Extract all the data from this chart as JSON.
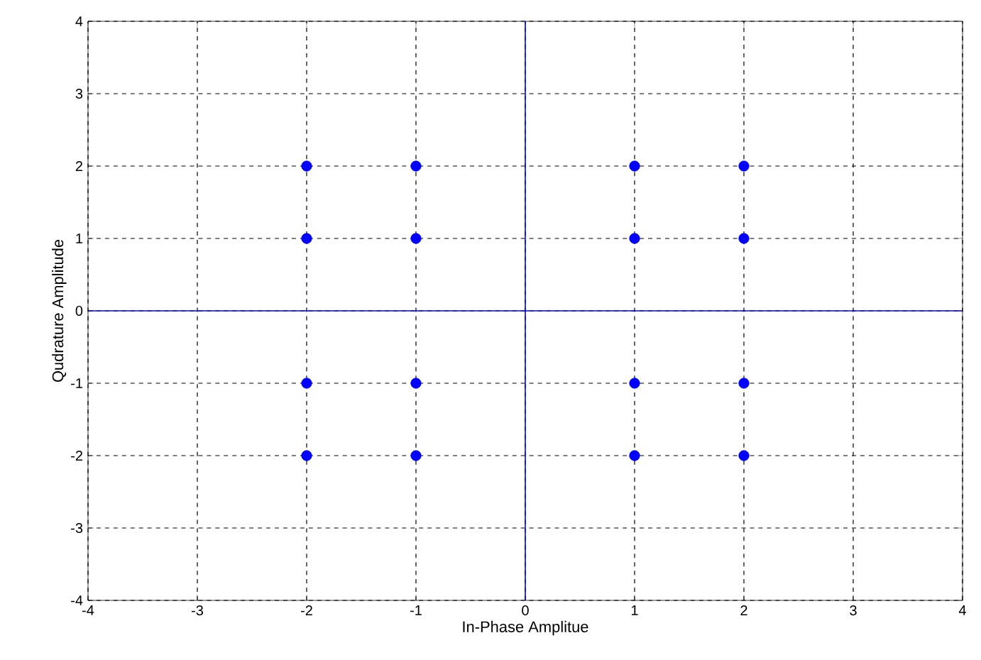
{
  "chart_data": {
    "type": "scatter",
    "xlabel": "In-Phase Amplitue",
    "ylabel": "Qudrature Amplitude",
    "series": [
      {
        "color": "#0000ff",
        "marker": "circle",
        "x": [
          -2,
          -2,
          -2,
          -2,
          -1,
          -1,
          -1,
          -1,
          1,
          1,
          1,
          1,
          2,
          2,
          2,
          2
        ],
        "values": [
          2,
          1,
          -1,
          -2,
          2,
          1,
          -1,
          -2,
          2,
          1,
          -1,
          -2,
          2,
          1,
          -1,
          -2
        ]
      },
      {
        "type": "line",
        "color": "#0000ff",
        "marker": "none",
        "x": [
          0,
          0
        ],
        "values": [
          -4,
          4
        ]
      },
      {
        "type": "line",
        "color": "#0000ff",
        "marker": "none",
        "x": [
          -4,
          4
        ],
        "values": [
          0,
          0
        ]
      }
    ],
    "xlim": [
      -4,
      4
    ],
    "ylim": [
      -4,
      4
    ],
    "xticks": [
      -4,
      -3,
      -2,
      -1,
      0,
      1,
      2,
      3,
      4
    ],
    "yticks": [
      -4,
      -3,
      -2,
      -1,
      0,
      1,
      2,
      3,
      4
    ],
    "grid": true
  }
}
